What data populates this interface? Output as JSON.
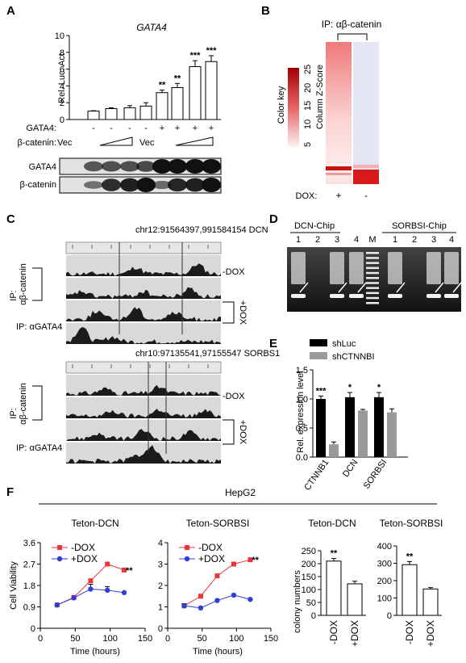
{
  "panels": {
    "a": "A",
    "b": "B",
    "c": "C",
    "d": "D",
    "e": "E",
    "f": "F"
  },
  "panel_a": {
    "title": "GATA4",
    "ylabel": "Rel. Luc. Act",
    "row_gata4_label": "GATA4:",
    "row_gata4_signs": [
      "-",
      "-",
      "-",
      "-",
      "+",
      "+",
      "+",
      "+"
    ],
    "row_bcat_label": "β-catenin:",
    "vec1": "Vec",
    "vec2": "Vec",
    "blot_labels": [
      "GATA4",
      "β-catenin"
    ]
  },
  "panel_b": {
    "ip_label": "IP: αβ-catenin",
    "color_key": "Color key",
    "zscore": "Column Z-Score",
    "dox_label": "DOX:",
    "dox_signs": [
      "+",
      "-"
    ]
  },
  "panel_c": {
    "locus1": "chr12:91564397,991584154 DCN",
    "locus2": "chr10:97135541,97155547 SORBS1",
    "ip_bcat_top": "IP:",
    "ip_bcat_bottom": "αβ-catenin",
    "ip_gata4": "IP: αGATA4",
    "minus_dox": "-DOX",
    "plus_dox": "+DOX"
  },
  "panel_d": {
    "dcn": "DCN-Chip",
    "sorbs": "SORBSI-Chip",
    "lanes1": [
      "1",
      "2",
      "3",
      "4"
    ],
    "marker": "M",
    "lanes2": [
      "1",
      "2",
      "3",
      "4"
    ]
  },
  "panel_e": {
    "ylabel": "Rel. expression level",
    "legend": [
      "shLuc",
      "shCTNNBI"
    ],
    "groups": [
      "CTNNB1",
      "DCN",
      "SORBSI"
    ],
    "stars": [
      "***",
      "*",
      "*"
    ]
  },
  "panel_f": {
    "header": "HepG2",
    "t1": "Teton-DCN",
    "t2": "Teton-SORBSI",
    "t3": "Teton-DCN",
    "t4": "Teton-SORBSI",
    "ylabel_cv": "Cell Viability",
    "ylabel_col": "colony numbers",
    "xlabel": "Time (hours)",
    "legend": [
      "-DOX",
      "+DOX"
    ],
    "sig": "**",
    "bar_x": [
      "-DOX",
      "+DOX"
    ]
  },
  "colors": {
    "minus_dox": "#e8363c",
    "plus_dox": "#2f3fd6",
    "shLuc": "#000000",
    "shCTNNBI": "#9a9a9a",
    "heat_red": "#d61a1a"
  },
  "chart_data": [
    {
      "id": "A",
      "type": "bar",
      "title": "GATA4",
      "ylabel": "Rel. Luc. Act",
      "ylim": [
        0,
        10
      ],
      "yticks": [
        0,
        2,
        4,
        6,
        8,
        10
      ],
      "values": [
        1.0,
        1.3,
        1.4,
        1.6,
        3.2,
        3.8,
        6.3,
        6.9
      ],
      "errors": [
        0.05,
        0.1,
        0.25,
        0.4,
        0.3,
        0.5,
        0.7,
        0.7
      ],
      "stars": [
        "",
        "",
        "",
        "",
        "**",
        "**",
        "***",
        "***"
      ]
    },
    {
      "id": "E",
      "type": "bar",
      "ylabel": "Rel. expression level",
      "categories": [
        "CTNNB1",
        "DCN",
        "SORBSI"
      ],
      "ylim": [
        0,
        1.5
      ],
      "yticks": [
        0.0,
        0.5,
        1.0,
        1.5
      ],
      "series": [
        {
          "name": "shLuc",
          "values": [
            1.0,
            1.03,
            1.03
          ],
          "errors": [
            0.05,
            0.08,
            0.08
          ]
        },
        {
          "name": "shCTNNBI",
          "values": [
            0.22,
            0.8,
            0.77
          ],
          "errors": [
            0.04,
            0.02,
            0.06
          ]
        }
      ]
    },
    {
      "id": "F1",
      "type": "line",
      "title": "Teton-DCN",
      "ylabel": "Cell Viability",
      "xlabel": "Time (hours)",
      "xlim": [
        0,
        150
      ],
      "xticks": [
        0,
        50,
        100,
        150
      ],
      "ylim": [
        0,
        3.6
      ],
      "yticks": [
        0,
        0.9,
        1.8,
        2.7,
        3.6
      ],
      "series": [
        {
          "name": "-DOX",
          "x": [
            24,
            48,
            72,
            96,
            120
          ],
          "y": [
            0.98,
            1.3,
            2.0,
            2.7,
            2.45
          ]
        },
        {
          "name": "+DOX",
          "x": [
            24,
            48,
            72,
            96,
            120
          ],
          "y": [
            0.98,
            1.28,
            1.65,
            1.6,
            1.5
          ],
          "errors": [
            0,
            0,
            0.2,
            0.15,
            0
          ]
        }
      ]
    },
    {
      "id": "F2",
      "type": "line",
      "title": "Teton-SORBSI",
      "xlabel": "Time (hours)",
      "xlim": [
        0,
        150
      ],
      "xticks": [
        0,
        50,
        100,
        150
      ],
      "ylim": [
        0,
        4
      ],
      "yticks": [
        0,
        1,
        2,
        3,
        4
      ],
      "series": [
        {
          "name": "-DOX",
          "x": [
            24,
            48,
            72,
            96,
            120
          ],
          "y": [
            1.05,
            1.5,
            2.45,
            3.0,
            3.2
          ]
        },
        {
          "name": "+DOX",
          "x": [
            24,
            48,
            72,
            96,
            120
          ],
          "y": [
            1.05,
            0.95,
            1.3,
            1.55,
            1.35
          ],
          "errors": [
            0.1,
            0,
            0,
            0,
            0
          ]
        }
      ]
    },
    {
      "id": "F3",
      "type": "bar",
      "title": "Teton-DCN",
      "ylabel": "colony numbers",
      "categories": [
        "-DOX",
        "+DOX"
      ],
      "ylim": [
        0,
        250
      ],
      "yticks": [
        0,
        50,
        100,
        150,
        200,
        250
      ],
      "values": [
        210,
        122
      ],
      "errors": [
        10,
        10
      ],
      "stars": [
        "**",
        ""
      ]
    },
    {
      "id": "F4",
      "type": "bar",
      "title": "Teton-SORBSI",
      "categories": [
        "-DOX",
        "+DOX"
      ],
      "ylim": [
        0,
        400
      ],
      "yticks": [
        0,
        100,
        200,
        300,
        400
      ],
      "values": [
        292,
        152
      ],
      "errors": [
        18,
        8
      ],
      "stars": [
        "**",
        ""
      ]
    }
  ]
}
